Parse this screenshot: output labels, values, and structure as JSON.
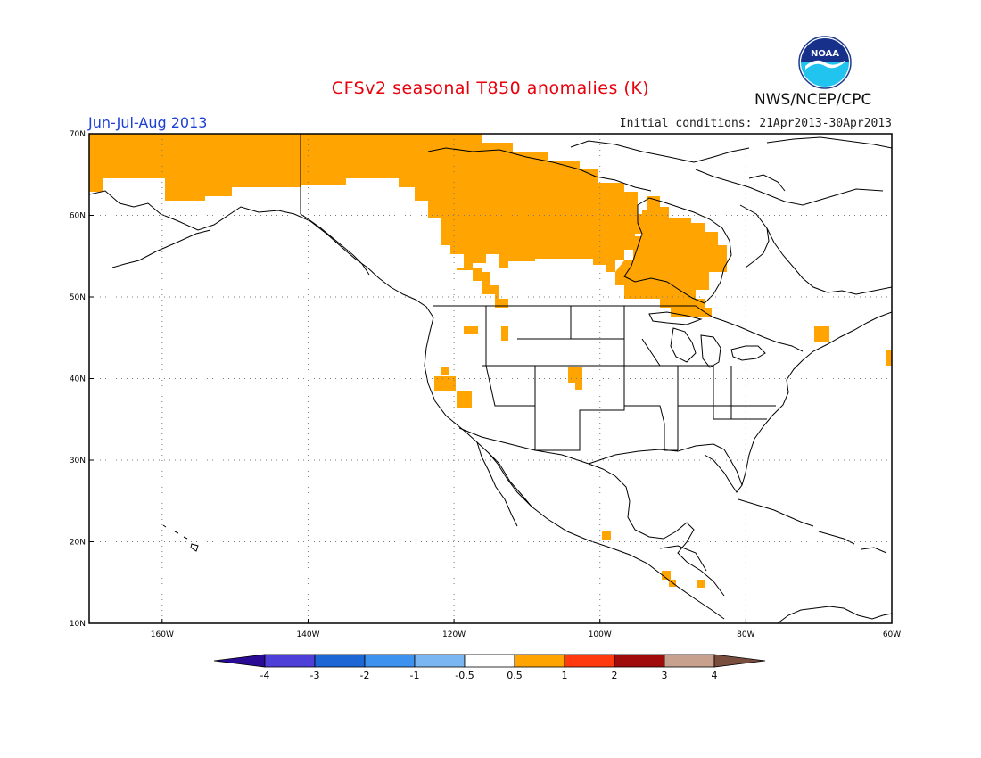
{
  "header": {
    "title": "CFSv2 seasonal T850 anomalies (K)",
    "season": "Jun-Jul-Aug 2013",
    "initial_conditions": "Initial conditions: 21Apr2013-30Apr2013",
    "agency": "NWS/NCEP/CPC",
    "logo_text": "NOAA"
  },
  "map": {
    "lat_labels": [
      "70N",
      "60N",
      "50N",
      "40N",
      "30N",
      "20N",
      "10N"
    ],
    "lon_labels": [
      "160W",
      "140W",
      "120W",
      "100W",
      "80W",
      "60W"
    ],
    "lat_range": [
      10,
      70
    ],
    "lon_range": [
      -170,
      -60
    ]
  },
  "colorbar": {
    "labels": [
      "-4",
      "-3",
      "-2",
      "-1",
      "-0.5",
      "0.5",
      "1",
      "2",
      "3",
      "4"
    ],
    "colors": [
      "#2a0b96",
      "#4d3fd8",
      "#1c66d6",
      "#3c92ee",
      "#7ab7f2",
      "#ffffff",
      "#ffa400",
      "#ff3a0f",
      "#a00b0b",
      "#c8a08e",
      "#7a4e3e"
    ],
    "anomaly_color": "#ffa400"
  }
}
